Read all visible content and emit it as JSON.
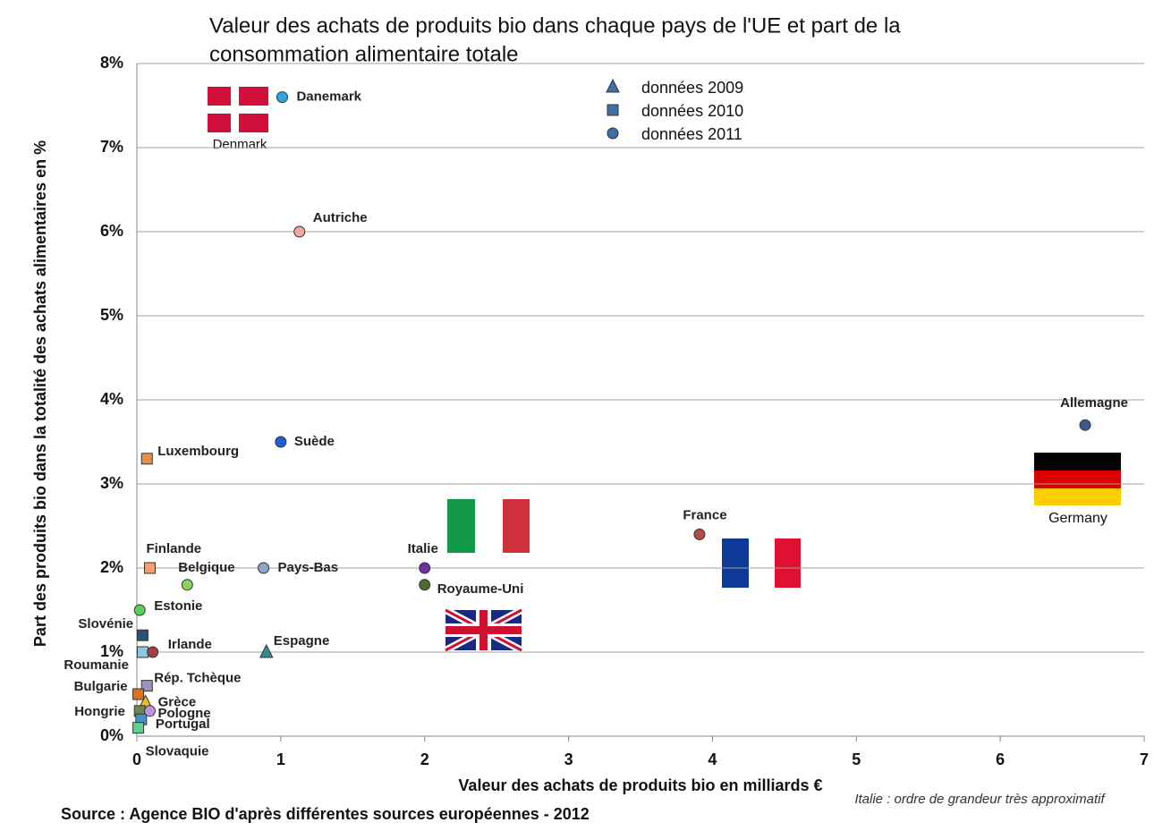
{
  "chart_data": {
    "type": "scatter",
    "title": [
      "Valeur des achats de produits bio dans chaque pays de l'UE et part de la",
      "consommation alimentaire totale"
    ],
    "x_label": "Valeur des achats de produits bio en milliards €",
    "y_label": "Part des produits bio dans la totalité des achats alimentaires en  %",
    "xlim": [
      0,
      7
    ],
    "xticks": [
      0,
      1,
      2,
      3,
      4,
      5,
      6,
      7
    ],
    "ylim": [
      0,
      8
    ],
    "yticks": [
      {
        "value": 0,
        "label": "0%"
      },
      {
        "value": 1,
        "label": "1%"
      },
      {
        "value": 2,
        "label": "2%"
      },
      {
        "value": 3,
        "label": "3%"
      },
      {
        "value": 4,
        "label": "4%"
      },
      {
        "value": 5,
        "label": "5%"
      },
      {
        "value": 6,
        "label": "6%"
      },
      {
        "value": 7,
        "label": "7%"
      },
      {
        "value": 8,
        "label": "8%"
      }
    ],
    "grid": true,
    "legend": "top",
    "series": [
      {
        "name": "données 2009",
        "marker": "triangle",
        "color": "#3f6fa8",
        "points": [
          {
            "name": "Espagne",
            "x": 0.9,
            "y": 1.0,
            "color": "#3a8a8a"
          },
          {
            "name": "Grèce",
            "x": 0.06,
            "y": 0.4,
            "color": "#f0c020"
          }
        ]
      },
      {
        "name": "données 2010",
        "marker": "square",
        "color": "#3f6fa8",
        "points": [
          {
            "name": "Luxembourg",
            "x": 0.07,
            "y": 3.3,
            "color": "#e8904a"
          },
          {
            "name": "Finlande",
            "x": 0.09,
            "y": 2.0,
            "color": "#f4a070"
          },
          {
            "name": "Slovénie",
            "x": 0.04,
            "y": 1.2,
            "color": "#2f4f6f"
          },
          {
            "name": "Roumanie",
            "x": 0.04,
            "y": 1.0,
            "color": "#8cc8e0"
          },
          {
            "name": "Rép. Tchèque",
            "x": 0.07,
            "y": 0.6,
            "color": "#a090c0"
          },
          {
            "name": "Bulgarie",
            "x": 0.01,
            "y": 0.5,
            "color": "#e07020"
          },
          {
            "name": "Hongrie",
            "x": 0.02,
            "y": 0.3,
            "color": "#6a8a4a"
          },
          {
            "name": "Portugal",
            "x": 0.03,
            "y": 0.2,
            "color": "#4a90d0"
          },
          {
            "name": "Slovaquie",
            "x": 0.01,
            "y": 0.1,
            "color": "#60d090"
          }
        ]
      },
      {
        "name": "données 2011",
        "marker": "circle",
        "color": "#3f6fa8",
        "points": [
          {
            "name": "Danemark",
            "x": 1.01,
            "y": 7.6,
            "color": "#29a8e0"
          },
          {
            "name": "Autriche",
            "x": 1.13,
            "y": 6.0,
            "color": "#f4a6a6"
          },
          {
            "name": "Suède",
            "x": 1.0,
            "y": 3.5,
            "color": "#1f5fd6"
          },
          {
            "name": "Allemagne",
            "x": 6.59,
            "y": 3.7,
            "color": "#3d5a8a"
          },
          {
            "name": "France",
            "x": 3.91,
            "y": 2.4,
            "color": "#b84a4a"
          },
          {
            "name": "Pays-Bas",
            "x": 0.88,
            "y": 2.0,
            "color": "#8ca6c8"
          },
          {
            "name": "Italie",
            "x": 2.0,
            "y": 2.0,
            "color": "#7030a0"
          },
          {
            "name": "Belgique",
            "x": 0.35,
            "y": 1.8,
            "color": "#8ed060"
          },
          {
            "name": "Royaume-Uni",
            "x": 2.0,
            "y": 1.8,
            "color": "#4e6a2e"
          },
          {
            "name": "Estonie",
            "x": 0.02,
            "y": 1.5,
            "color": "#5ad05a"
          },
          {
            "name": "Irlande",
            "x": 0.11,
            "y": 1.0,
            "color": "#a04040"
          },
          {
            "name": "Pologne",
            "x": 0.09,
            "y": 0.3,
            "color": "#c090e0"
          }
        ]
      }
    ],
    "flag_labels": [
      "Denmark",
      "Germany"
    ],
    "note": "Italie : ordre de grandeur très approximatif",
    "source": "Source : Agence BIO d'après différentes sources européennes - 2012"
  }
}
